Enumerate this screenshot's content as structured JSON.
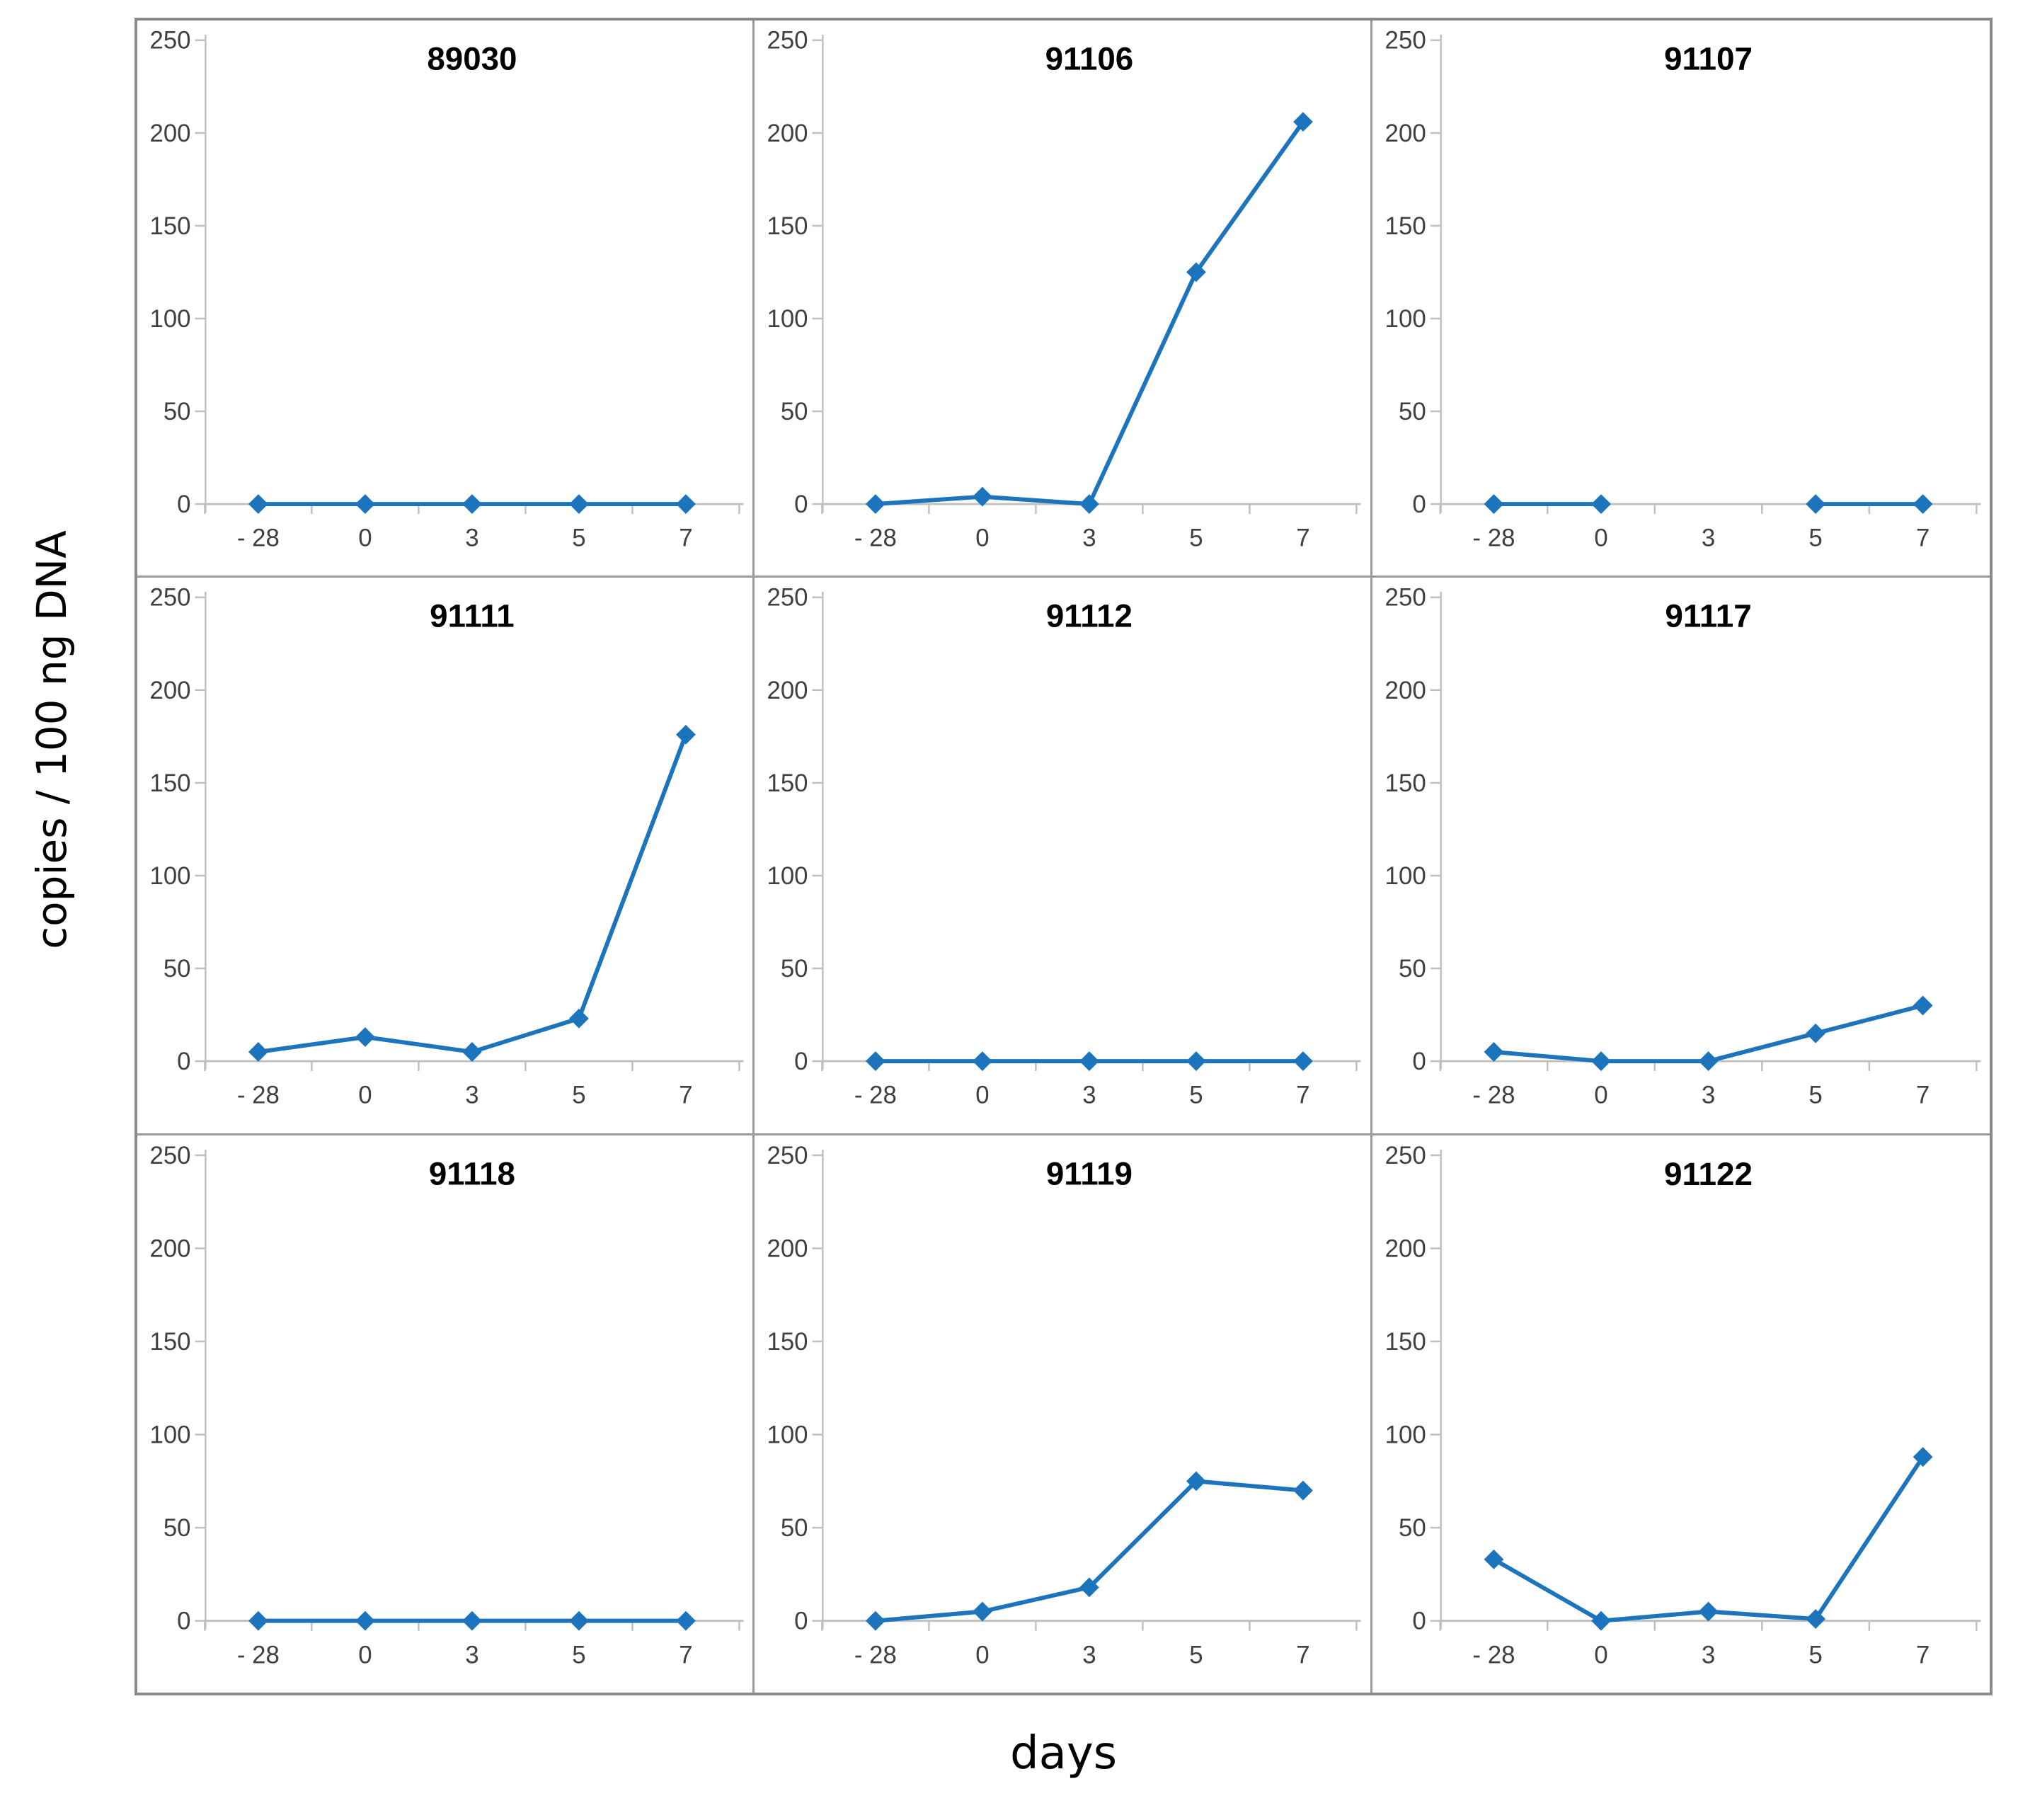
{
  "figure": {
    "xlabel": "days",
    "ylabel": "copies / 100 ng DNA"
  },
  "chart_data": {
    "type": "line",
    "layout": "3x3 small multiples, one panel per animal id, title centered above each panel",
    "categories": [
      "- 28",
      "0",
      "3",
      "5",
      "7"
    ],
    "x_values": [
      -28,
      0,
      3,
      5,
      7
    ],
    "xlabel": "days",
    "ylabel": "copies / 100 ng DNA",
    "ylim": [
      0,
      250
    ],
    "yticks": [
      0,
      50,
      100,
      150,
      200,
      250
    ],
    "grid": false,
    "legend": false,
    "marker": "diamond",
    "colors": {
      "line": "#1C75BC",
      "tick_text": "#404040",
      "axis_line": "#C0C0C0",
      "panel_border": "#9A9A9A",
      "title_text": "#000000"
    },
    "series": [
      {
        "name": "89030",
        "values": [
          0,
          0,
          0,
          0,
          0
        ]
      },
      {
        "name": "91106",
        "values": [
          0,
          4,
          0,
          125,
          206
        ]
      },
      {
        "name": "91107",
        "values": [
          0,
          0,
          null,
          0,
          0
        ]
      },
      {
        "name": "91111",
        "values": [
          5,
          13,
          5,
          23,
          176
        ]
      },
      {
        "name": "91112",
        "values": [
          0,
          0,
          0,
          0,
          0
        ]
      },
      {
        "name": "91117",
        "values": [
          5,
          0,
          0,
          15,
          30
        ]
      },
      {
        "name": "91118",
        "values": [
          0,
          0,
          0,
          0,
          0
        ]
      },
      {
        "name": "91119",
        "values": [
          0,
          5,
          18,
          75,
          70
        ]
      },
      {
        "name": "91122",
        "values": [
          33,
          0,
          5,
          1,
          88
        ]
      }
    ]
  }
}
